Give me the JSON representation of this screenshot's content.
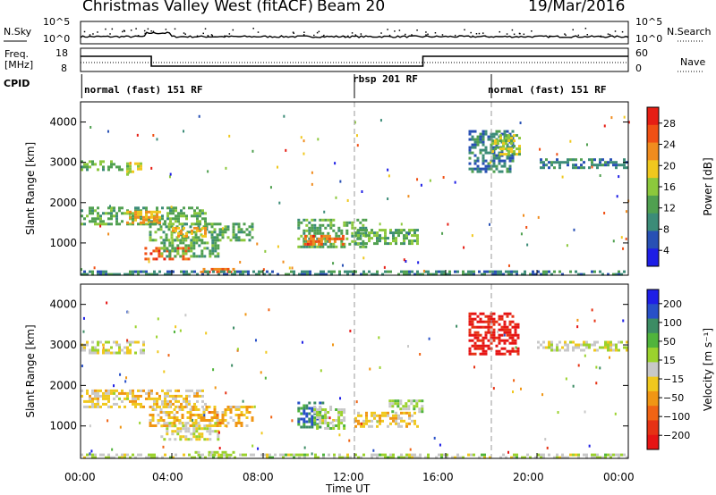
{
  "header": {
    "title": "Christmas Valley West (fitACF)",
    "beam": "Beam 20",
    "date": "19/Mar/2016"
  },
  "nsky_panel": {
    "left_label": "N.Sky",
    "right_label": "N.Search",
    "left_ticks": [
      "10^5",
      "10^0"
    ],
    "right_ticks": [
      "10^5",
      "10^0"
    ]
  },
  "freq_panel": {
    "left_label_line1": "Freq.",
    "left_label_line2": "[MHz]",
    "right_label": "Nave",
    "left_ticks": [
      "18",
      "8"
    ],
    "right_ticks": [
      "60",
      "0"
    ]
  },
  "cpid": {
    "label": "CPID",
    "segments": [
      {
        "text": "normal (fast) 151 RF",
        "start_hour": 0
      },
      {
        "text": "rbsp 201 RF",
        "start_hour": 12
      },
      {
        "text": "normal (fast) 151 RF",
        "start_hour": 18
      }
    ]
  },
  "x_axis": {
    "label": "Time UT",
    "ticks": [
      "00:00",
      "04:00",
      "08:00",
      "12:00",
      "16:00",
      "20:00",
      "00:00"
    ],
    "range_hours": [
      0,
      24
    ]
  },
  "colors": {
    "power_scale": [
      "#1e1ee6",
      "#2850b4",
      "#3c8c78",
      "#50a050",
      "#8cc83c",
      "#f0c81e",
      "#f08c1e",
      "#f05014",
      "#e61e14"
    ],
    "velocity_scale": [
      "#1e1ee6",
      "#2850c8",
      "#3c8c64",
      "#50b43c",
      "#9bd22d",
      "#c8c8c8",
      "#f0c81e",
      "#f09614",
      "#f06414",
      "#e63214",
      "#e61414"
    ]
  },
  "chart_data": [
    {
      "type": "heatmap",
      "name": "power_panel",
      "ylabel": "Slant Range [km]",
      "ylim": [
        200,
        4500
      ],
      "yticks": [
        1000,
        2000,
        3000,
        4000
      ],
      "colorbar_label": "Power [dB]",
      "colorbar_ticks": [
        "28",
        "24",
        "20",
        "16",
        "12",
        "8",
        "4"
      ],
      "colorbar_range": [
        0,
        30
      ],
      "regions": [
        {
          "t": [
            0.0,
            1.8
          ],
          "r": [
            2850,
            3050
          ],
          "level": 12
        },
        {
          "t": [
            2.0,
            2.6
          ],
          "r": [
            2700,
            3000
          ],
          "level": 16
        },
        {
          "t": [
            0.0,
            5.5
          ],
          "r": [
            1500,
            1900
          ],
          "level": 12
        },
        {
          "t": [
            2.0,
            3.5
          ],
          "r": [
            1500,
            1800
          ],
          "level": 20
        },
        {
          "t": [
            3.0,
            7.5
          ],
          "r": [
            1100,
            1500
          ],
          "level": 12
        },
        {
          "t": [
            4.0,
            5.5
          ],
          "r": [
            1200,
            1400
          ],
          "level": 20
        },
        {
          "t": [
            2.8,
            4.8
          ],
          "r": [
            600,
            900
          ],
          "level": 24
        },
        {
          "t": [
            3.5,
            6.0
          ],
          "r": [
            700,
            1100
          ],
          "level": 12
        },
        {
          "t": [
            5.0,
            6.8
          ],
          "r": [
            250,
            380
          ],
          "level": 24
        },
        {
          "t": [
            9.5,
            12.5
          ],
          "r": [
            900,
            1600
          ],
          "level": 12
        },
        {
          "t": [
            9.8,
            11.5
          ],
          "r": [
            950,
            1200
          ],
          "level": 24
        },
        {
          "t": [
            12.0,
            14.8
          ],
          "r": [
            1000,
            1350
          ],
          "level": 12
        },
        {
          "t": [
            17.0,
            19.0
          ],
          "r": [
            2800,
            3800
          ],
          "level": 8
        },
        {
          "t": [
            18.0,
            19.2
          ],
          "r": [
            3200,
            3700
          ],
          "level": 16
        },
        {
          "t": [
            20.0,
            24.0
          ],
          "r": [
            2850,
            3100
          ],
          "level": 8
        },
        {
          "t": [
            0.0,
            24.0
          ],
          "r": [
            200,
            320
          ],
          "level": 8
        }
      ]
    },
    {
      "type": "heatmap",
      "name": "velocity_panel",
      "ylabel": "Slant Range [km]",
      "ylim": [
        200,
        4500
      ],
      "yticks": [
        1000,
        2000,
        3000,
        4000
      ],
      "colorbar_label": "Velocity [m s⁻¹]",
      "colorbar_ticks": [
        "200",
        "100",
        "50",
        "15",
        "−15",
        "−50",
        "−100",
        "−200"
      ],
      "colorbar_range": [
        -250,
        250
      ],
      "regions": [
        {
          "t": [
            0.0,
            2.8
          ],
          "r": [
            2800,
            3100
          ],
          "v": 0
        },
        {
          "t": [
            0.0,
            5.5
          ],
          "r": [
            1500,
            1900
          ],
          "v": -30
        },
        {
          "t": [
            3.0,
            7.5
          ],
          "r": [
            1000,
            1500
          ],
          "v": -60
        },
        {
          "t": [
            3.5,
            6.0
          ],
          "r": [
            700,
            1100
          ],
          "v": 0
        },
        {
          "t": [
            5.0,
            6.8
          ],
          "r": [
            250,
            380
          ],
          "v": 40
        },
        {
          "t": [
            9.5,
            10.6
          ],
          "r": [
            1000,
            1600
          ],
          "v": 150
        },
        {
          "t": [
            10.2,
            11.5
          ],
          "r": [
            950,
            1500
          ],
          "v": 30
        },
        {
          "t": [
            12.0,
            14.8
          ],
          "r": [
            1000,
            1350
          ],
          "v": -50
        },
        {
          "t": [
            13.5,
            15.0
          ],
          "r": [
            1350,
            1650
          ],
          "v": 40
        },
        {
          "t": [
            17.0,
            19.2
          ],
          "r": [
            2800,
            3800
          ],
          "v": -220
        },
        {
          "t": [
            20.0,
            24.0
          ],
          "r": [
            2850,
            3100
          ],
          "v": 0
        },
        {
          "t": [
            0.0,
            24.0
          ],
          "r": [
            200,
            320
          ],
          "v": 20
        }
      ]
    }
  ]
}
